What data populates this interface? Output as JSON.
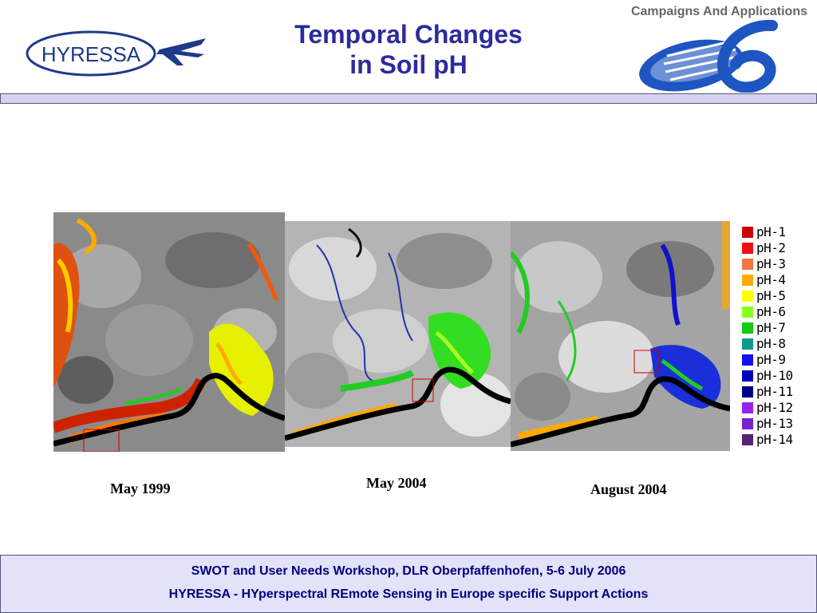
{
  "header": {
    "corner_text": "Campaigns And Applications",
    "title_line1": "Temporal Changes",
    "title_line2": "in Soil pH",
    "hyressa_logo_text": "HYRESSA"
  },
  "maps": [
    {
      "caption": "May 1999"
    },
    {
      "caption": "May 2004"
    },
    {
      "caption": "August 2004"
    }
  ],
  "legend": {
    "items": [
      {
        "label": "pH-1",
        "color": "#cc0000"
      },
      {
        "label": "pH-2",
        "color": "#ee1111"
      },
      {
        "label": "pH-3",
        "color": "#ee7744"
      },
      {
        "label": "pH-4",
        "color": "#ffaa00"
      },
      {
        "label": "pH-5",
        "color": "#ffff00"
      },
      {
        "label": "pH-6",
        "color": "#88ff22"
      },
      {
        "label": "pH-7",
        "color": "#11cc11"
      },
      {
        "label": "pH-8",
        "color": "#119988"
      },
      {
        "label": "pH-9",
        "color": "#1111ee"
      },
      {
        "label": "pH-10",
        "color": "#0000bb"
      },
      {
        "label": "pH-11",
        "color": "#000088"
      },
      {
        "label": "pH-12",
        "color": "#9922ee"
      },
      {
        "label": "pH-13",
        "color": "#7722cc"
      },
      {
        "label": "pH-14",
        "color": "#552277"
      }
    ]
  },
  "footer": {
    "line1": "SWOT and User Needs Workshop, DLR Oberpfaffenhofen,  5-6 July 2006",
    "line2": "HYRESSA - HYperspectral REmote Sensing in Europe specific Support Actions"
  }
}
